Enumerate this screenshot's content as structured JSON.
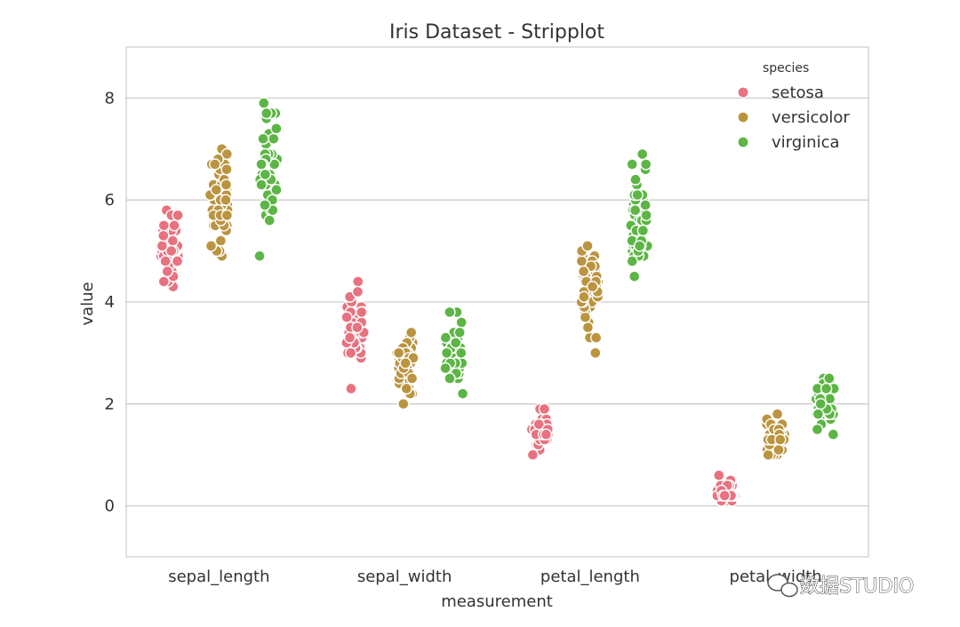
{
  "chart_data": {
    "type": "scatter",
    "title": "Iris Dataset - Stripplot",
    "xlabel": "measurement",
    "ylabel": "value",
    "categories": [
      "sepal_length",
      "sepal_width",
      "petal_length",
      "petal_width"
    ],
    "ylim": [
      -1,
      9
    ],
    "yticks": [
      0,
      2,
      4,
      6,
      8
    ],
    "grid": true,
    "legend": {
      "title": "species",
      "placement": "top-right"
    },
    "series": [
      {
        "name": "setosa",
        "color": "#e8727f",
        "values": [
          [
            5.1,
            4.9,
            4.7,
            4.6,
            5.0,
            5.4,
            4.6,
            5.0,
            4.4,
            4.9,
            5.4,
            4.8,
            4.8,
            4.3,
            5.8,
            5.7,
            5.4,
            5.1,
            5.7,
            5.1,
            5.4,
            5.1,
            4.6,
            5.1,
            4.8,
            5.0,
            5.0,
            5.2,
            5.2,
            4.7,
            4.8,
            5.4,
            5.2,
            5.5,
            4.9,
            5.0,
            5.5,
            4.9,
            4.4,
            5.1,
            5.0,
            4.5,
            4.4,
            5.0,
            5.1,
            4.8,
            5.1,
            4.6,
            5.3,
            5.0
          ],
          [
            3.5,
            3.0,
            3.2,
            3.1,
            3.6,
            3.9,
            3.4,
            3.4,
            2.9,
            3.1,
            3.7,
            3.4,
            3.0,
            3.0,
            4.0,
            4.4,
            3.9,
            3.5,
            3.8,
            3.8,
            3.4,
            3.7,
            3.6,
            3.3,
            3.4,
            3.0,
            3.4,
            3.5,
            3.4,
            3.2,
            3.1,
            3.4,
            4.1,
            4.2,
            3.1,
            3.2,
            3.5,
            3.6,
            3.0,
            3.4,
            3.5,
            2.3,
            3.2,
            3.5,
            3.8,
            3.0,
            3.8,
            3.2,
            3.7,
            3.3
          ],
          [
            1.4,
            1.4,
            1.3,
            1.5,
            1.4,
            1.7,
            1.4,
            1.5,
            1.4,
            1.5,
            1.5,
            1.6,
            1.4,
            1.1,
            1.2,
            1.5,
            1.3,
            1.4,
            1.7,
            1.5,
            1.7,
            1.5,
            1.0,
            1.7,
            1.9,
            1.6,
            1.6,
            1.5,
            1.4,
            1.6,
            1.6,
            1.5,
            1.5,
            1.4,
            1.5,
            1.2,
            1.3,
            1.4,
            1.3,
            1.5,
            1.3,
            1.3,
            1.3,
            1.6,
            1.9,
            1.4,
            1.6,
            1.4,
            1.5,
            1.4
          ],
          [
            0.2,
            0.2,
            0.2,
            0.2,
            0.2,
            0.4,
            0.3,
            0.2,
            0.2,
            0.1,
            0.2,
            0.2,
            0.1,
            0.1,
            0.2,
            0.4,
            0.4,
            0.3,
            0.3,
            0.3,
            0.2,
            0.4,
            0.2,
            0.5,
            0.2,
            0.2,
            0.4,
            0.2,
            0.2,
            0.2,
            0.2,
            0.4,
            0.1,
            0.2,
            0.2,
            0.2,
            0.2,
            0.1,
            0.2,
            0.2,
            0.3,
            0.3,
            0.2,
            0.6,
            0.4,
            0.3,
            0.2,
            0.2,
            0.2,
            0.2
          ]
        ]
      },
      {
        "name": "versicolor",
        "color": "#bb9440",
        "values": [
          [
            7.0,
            6.4,
            6.9,
            5.5,
            6.5,
            5.7,
            6.3,
            4.9,
            6.6,
            5.2,
            5.0,
            5.9,
            6.0,
            6.1,
            5.6,
            6.7,
            5.6,
            5.8,
            6.2,
            5.6,
            5.9,
            6.1,
            6.3,
            6.1,
            6.4,
            6.6,
            6.8,
            6.7,
            6.0,
            5.7,
            5.5,
            5.5,
            5.8,
            6.0,
            5.4,
            6.0,
            6.7,
            6.3,
            5.6,
            5.5,
            5.5,
            6.1,
            5.8,
            5.0,
            5.6,
            5.7,
            5.7,
            6.2,
            5.1,
            5.7
          ],
          [
            3.2,
            3.2,
            3.1,
            2.3,
            2.8,
            2.8,
            3.3,
            2.4,
            2.9,
            2.7,
            2.0,
            3.0,
            2.2,
            2.9,
            2.9,
            3.1,
            3.0,
            2.7,
            2.2,
            2.5,
            3.2,
            2.8,
            2.5,
            2.8,
            2.9,
            3.0,
            2.8,
            3.0,
            2.9,
            2.6,
            2.4,
            2.4,
            2.7,
            2.7,
            3.0,
            3.4,
            3.1,
            2.3,
            3.0,
            2.5,
            2.6,
            3.0,
            2.6,
            2.3,
            2.7,
            3.0,
            2.9,
            2.9,
            2.5,
            2.8
          ],
          [
            4.7,
            4.5,
            4.9,
            4.0,
            4.6,
            4.5,
            4.7,
            3.3,
            4.6,
            3.9,
            3.5,
            4.2,
            4.0,
            4.7,
            3.6,
            4.4,
            4.5,
            4.1,
            4.5,
            3.9,
            4.8,
            4.0,
            4.9,
            4.7,
            4.3,
            4.4,
            4.8,
            5.0,
            4.5,
            3.5,
            3.8,
            3.7,
            3.9,
            5.1,
            4.5,
            4.5,
            4.7,
            4.4,
            4.1,
            4.0,
            4.4,
            4.6,
            4.0,
            3.3,
            4.2,
            4.2,
            4.2,
            4.3,
            3.0,
            4.1
          ],
          [
            1.4,
            1.5,
            1.5,
            1.3,
            1.5,
            1.3,
            1.6,
            1.0,
            1.3,
            1.4,
            1.0,
            1.5,
            1.0,
            1.4,
            1.3,
            1.4,
            1.5,
            1.0,
            1.5,
            1.1,
            1.8,
            1.3,
            1.5,
            1.2,
            1.3,
            1.4,
            1.4,
            1.7,
            1.5,
            1.0,
            1.1,
            1.0,
            1.2,
            1.6,
            1.5,
            1.6,
            1.5,
            1.3,
            1.3,
            1.3,
            1.2,
            1.4,
            1.2,
            1.0,
            1.3,
            1.2,
            1.3,
            1.3,
            1.1,
            1.3
          ]
        ]
      },
      {
        "name": "virginica",
        "color": "#5db545",
        "values": [
          [
            6.3,
            5.8,
            7.1,
            6.3,
            6.5,
            7.6,
            4.9,
            7.3,
            6.7,
            7.2,
            6.5,
            6.4,
            6.8,
            5.7,
            5.8,
            6.4,
            6.5,
            7.7,
            7.7,
            6.0,
            6.9,
            5.6,
            7.7,
            6.3,
            6.7,
            7.2,
            6.2,
            6.1,
            6.4,
            7.2,
            7.4,
            7.9,
            6.4,
            6.3,
            6.1,
            7.7,
            6.3,
            6.4,
            6.0,
            6.9,
            6.7,
            6.9,
            5.8,
            6.8,
            6.7,
            6.7,
            6.3,
            6.5,
            6.2,
            5.9
          ],
          [
            3.3,
            2.7,
            3.0,
            2.9,
            3.0,
            3.0,
            2.5,
            2.9,
            2.5,
            3.6,
            3.2,
            2.7,
            3.0,
            2.5,
            2.8,
            3.2,
            3.0,
            3.8,
            2.6,
            2.2,
            3.2,
            2.8,
            2.8,
            2.7,
            3.3,
            3.2,
            2.8,
            3.0,
            2.8,
            3.0,
            2.8,
            3.8,
            2.8,
            2.8,
            2.6,
            3.0,
            3.4,
            3.1,
            3.0,
            3.1,
            3.1,
            3.1,
            2.7,
            3.2,
            3.3,
            3.0,
            2.5,
            3.0,
            3.4,
            3.0
          ],
          [
            6.0,
            5.1,
            5.9,
            5.6,
            5.8,
            6.6,
            4.5,
            6.3,
            5.8,
            6.1,
            5.1,
            5.3,
            5.5,
            5.0,
            5.1,
            5.3,
            5.5,
            6.7,
            6.9,
            5.0,
            5.7,
            4.9,
            6.7,
            4.9,
            5.7,
            6.0,
            4.8,
            4.9,
            5.6,
            5.8,
            6.1,
            6.4,
            5.6,
            5.1,
            5.6,
            6.1,
            5.6,
            5.5,
            4.8,
            5.4,
            5.6,
            5.1,
            5.1,
            5.9,
            5.7,
            5.2,
            5.0,
            5.2,
            5.4,
            5.1
          ],
          [
            2.5,
            1.9,
            2.1,
            1.8,
            2.2,
            2.1,
            1.7,
            1.8,
            1.8,
            2.5,
            2.0,
            1.9,
            2.1,
            2.0,
            2.4,
            2.3,
            1.8,
            2.2,
            2.3,
            1.5,
            2.3,
            2.0,
            2.0,
            1.8,
            2.1,
            1.8,
            1.8,
            1.8,
            2.1,
            1.6,
            1.9,
            2.0,
            2.2,
            1.5,
            1.4,
            2.3,
            2.4,
            1.8,
            1.8,
            2.1,
            2.4,
            2.3,
            1.9,
            2.3,
            2.5,
            2.3,
            1.9,
            2.0,
            2.3,
            1.8
          ]
        ]
      }
    ]
  },
  "watermark": {
    "text": "数据STUDIO",
    "icon": "wechat-icon"
  }
}
